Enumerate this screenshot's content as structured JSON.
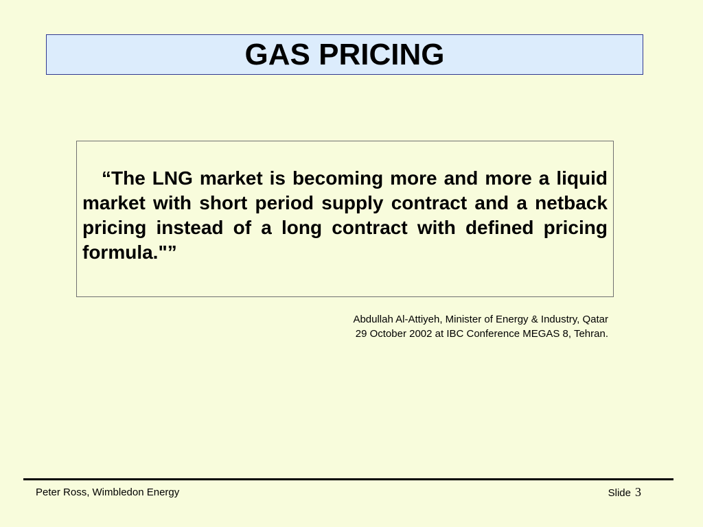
{
  "slide": {
    "title": "GAS PRICING",
    "quote": "“The LNG market is becoming more and more a liquid market with short period supply contract and a netback pricing instead of a long contract with defined pricing formula.\"”",
    "attribution": {
      "line1": "Abdullah Al-Attiyeh, Minister of Energy & Industry, Qatar",
      "line2": "29 October 2002 at IBC Conference MEGAS 8, Tehran."
    }
  },
  "footer": {
    "author": "Peter Ross, Wimbledon Energy",
    "slide_label": "Slide",
    "slide_number": "3"
  }
}
